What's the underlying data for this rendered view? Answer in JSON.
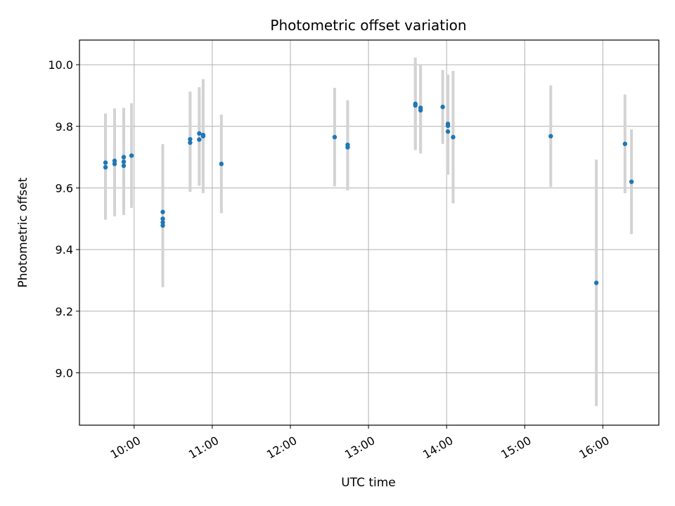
{
  "chart_data": {
    "type": "scatter",
    "title": "Photometric offset variation",
    "xlabel": "UTC time",
    "ylabel": "Photometric offset",
    "x_ticks": [
      "10:00",
      "11:00",
      "12:00",
      "13:00",
      "14:00",
      "15:00",
      "16:00"
    ],
    "y_ticks": [
      "9.0",
      "9.2",
      "9.4",
      "9.6",
      "9.8",
      "10.0"
    ],
    "xlim": [
      "09:18",
      "16:43"
    ],
    "ylim": [
      8.83,
      10.08
    ],
    "grid": true,
    "point_color": "#1f77b4",
    "errorbar_color": "#d3d3d3",
    "series": [
      {
        "points": [
          {
            "x": "09:38",
            "y": 9.682,
            "err": 0.16
          },
          {
            "x": "09:38",
            "y": 9.667,
            "err": 0.17
          },
          {
            "x": "09:45",
            "y": 9.688,
            "err": 0.17
          },
          {
            "x": "09:45",
            "y": 9.678,
            "err": 0.17
          },
          {
            "x": "09:52",
            "y": 9.7,
            "err": 0.16
          },
          {
            "x": "09:52",
            "y": 9.685,
            "err": 0.16
          },
          {
            "x": "09:52",
            "y": 9.672,
            "err": 0.16
          },
          {
            "x": "09:58",
            "y": 9.705,
            "err": 0.17
          },
          {
            "x": "10:22",
            "y": 9.522,
            "err": 0.22
          },
          {
            "x": "10:22",
            "y": 9.5,
            "err": 0.2
          },
          {
            "x": "10:22",
            "y": 9.488,
            "err": 0.21
          },
          {
            "x": "10:22",
            "y": 9.478,
            "err": 0.18
          },
          {
            "x": "10:43",
            "y": 9.758,
            "err": 0.155
          },
          {
            "x": "10:43",
            "y": 9.747,
            "err": 0.16
          },
          {
            "x": "10:50",
            "y": 9.777,
            "err": 0.15
          },
          {
            "x": "10:50",
            "y": 9.757,
            "err": 0.15
          },
          {
            "x": "10:53",
            "y": 9.768,
            "err": 0.185
          },
          {
            "x": "10:53",
            "y": 9.772,
            "err": 0.16
          },
          {
            "x": "11:07",
            "y": 9.678,
            "err": 0.16
          },
          {
            "x": "12:34",
            "y": 9.765,
            "err": 0.16
          },
          {
            "x": "12:44",
            "y": 9.74,
            "err": 0.145
          },
          {
            "x": "12:44",
            "y": 9.732,
            "err": 0.14
          },
          {
            "x": "13:36",
            "y": 9.873,
            "err": 0.15
          },
          {
            "x": "13:36",
            "y": 9.868,
            "err": 0.14
          },
          {
            "x": "13:40",
            "y": 9.86,
            "err": 0.14
          },
          {
            "x": "13:40",
            "y": 9.852,
            "err": 0.14
          },
          {
            "x": "13:57",
            "y": 9.863,
            "err": 0.12
          },
          {
            "x": "14:01",
            "y": 9.808,
            "err": 0.16
          },
          {
            "x": "14:01",
            "y": 9.802,
            "err": 0.155
          },
          {
            "x": "14:01",
            "y": 9.783,
            "err": 0.14
          },
          {
            "x": "14:05",
            "y": 9.765,
            "err": 0.215
          },
          {
            "x": "15:20",
            "y": 9.768,
            "err": 0.165
          },
          {
            "x": "15:55",
            "y": 9.292,
            "err": 0.4
          },
          {
            "x": "16:17",
            "y": 9.743,
            "err": 0.16
          },
          {
            "x": "16:22",
            "y": 9.62,
            "err": 0.17
          }
        ]
      }
    ]
  }
}
